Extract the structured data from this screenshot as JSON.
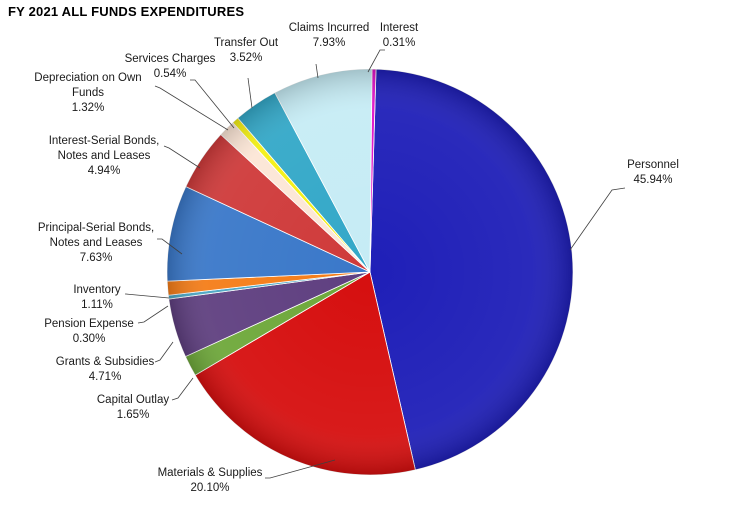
{
  "chart_data": {
    "type": "pie",
    "title": "FY 2021 ALL FUNDS EXPENDITURES",
    "slices": [
      {
        "label": "Personnel",
        "value": 45.94,
        "pct": "45.94%",
        "color": "#1f1fb8"
      },
      {
        "label": "Materials & Supplies",
        "value": 20.1,
        "pct": "20.10%",
        "color": "#d60f0f"
      },
      {
        "label": "Capital Outlay",
        "value": 1.65,
        "pct": "1.65%",
        "color": "#6ea83a"
      },
      {
        "label": "Grants & Subsidies",
        "value": 4.71,
        "pct": "4.71%",
        "color": "#5f3f80"
      },
      {
        "label": "Pension Expense",
        "value": 0.3,
        "pct": "0.30%",
        "color": "#4aa6c4"
      },
      {
        "label": "Inventory",
        "value": 1.11,
        "pct": "1.11%",
        "color": "#f57d18"
      },
      {
        "label": "Principal-Serial Bonds, Notes and Leases",
        "value": 7.63,
        "pct": "7.63%",
        "color": "#3a78c9"
      },
      {
        "label": "Interest-Serial Bonds, Notes and Leases",
        "value": 4.94,
        "pct": "4.94%",
        "color": "#cf3a3a"
      },
      {
        "label": "Depreciation on Own Funds",
        "value": 1.32,
        "pct": "1.32%",
        "color": "#fce6d6"
      },
      {
        "label": "Services Charges",
        "value": 0.54,
        "pct": "0.54%",
        "color": "#f4f014"
      },
      {
        "label": "Transfer Out",
        "value": 3.52,
        "pct": "3.52%",
        "color": "#33a8c8"
      },
      {
        "label": "Claims Incurred",
        "value": 7.93,
        "pct": "7.93%",
        "color": "#c6ecf5"
      },
      {
        "label": "Interest",
        "value": 0.31,
        "pct": "0.31%",
        "color": "#e013c8"
      }
    ]
  }
}
